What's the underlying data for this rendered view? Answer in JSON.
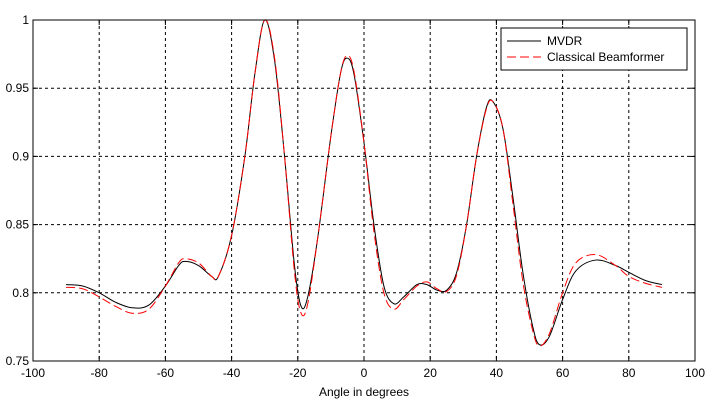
{
  "chart_data": {
    "type": "line",
    "xlabel": "Angle in degrees",
    "ylabel": "",
    "xlim": [
      -100,
      100
    ],
    "ylim": [
      0.75,
      1.0
    ],
    "xticks": [
      -100,
      -80,
      -60,
      -40,
      -20,
      0,
      20,
      40,
      60,
      80,
      100
    ],
    "yticks": [
      0.75,
      0.8,
      0.85,
      0.9,
      0.95,
      1.0
    ],
    "xtick_labels": [
      "-100",
      "-80",
      "-60",
      "-40",
      "-20",
      "0",
      "20",
      "40",
      "60",
      "80",
      "100"
    ],
    "ytick_labels": [
      "0.75",
      "0.8",
      "0.85",
      "0.9",
      "0.95",
      "1"
    ],
    "grid": true,
    "legend_position": "top-right",
    "series": [
      {
        "name": "MVDR",
        "color": "#000000",
        "dash": "solid",
        "points": [
          [
            -90,
            0.806
          ],
          [
            -85,
            0.805
          ],
          [
            -80,
            0.8
          ],
          [
            -75,
            0.793
          ],
          [
            -70,
            0.789
          ],
          [
            -65,
            0.791
          ],
          [
            -60,
            0.805
          ],
          [
            -56,
            0.82
          ],
          [
            -54,
            0.823
          ],
          [
            -50,
            0.82
          ],
          [
            -46,
            0.812
          ],
          [
            -44,
            0.812
          ],
          [
            -40,
            0.842
          ],
          [
            -36,
            0.9
          ],
          [
            -33,
            0.96
          ],
          [
            -30,
            1.0
          ],
          [
            -27,
            0.97
          ],
          [
            -24,
            0.9
          ],
          [
            -21,
            0.82
          ],
          [
            -19,
            0.79
          ],
          [
            -17,
            0.797
          ],
          [
            -14,
            0.84
          ],
          [
            -10,
            0.915
          ],
          [
            -7,
            0.962
          ],
          [
            -5,
            0.972
          ],
          [
            -3,
            0.96
          ],
          [
            0,
            0.91
          ],
          [
            3,
            0.85
          ],
          [
            6,
            0.805
          ],
          [
            9,
            0.792
          ],
          [
            12,
            0.797
          ],
          [
            16,
            0.806
          ],
          [
            19,
            0.806
          ],
          [
            22,
            0.802
          ],
          [
            25,
            0.802
          ],
          [
            28,
            0.815
          ],
          [
            31,
            0.85
          ],
          [
            34,
            0.9
          ],
          [
            37,
            0.936
          ],
          [
            39,
            0.94
          ],
          [
            42,
            0.92
          ],
          [
            45,
            0.87
          ],
          [
            48,
            0.815
          ],
          [
            51,
            0.775
          ],
          [
            53,
            0.762
          ],
          [
            56,
            0.768
          ],
          [
            60,
            0.795
          ],
          [
            64,
            0.816
          ],
          [
            70,
            0.824
          ],
          [
            76,
            0.82
          ],
          [
            80,
            0.815
          ],
          [
            85,
            0.809
          ],
          [
            90,
            0.806
          ]
        ]
      },
      {
        "name": "Classical Beamformer",
        "color": "#ff0000",
        "dash": "dashed",
        "points": [
          [
            -90,
            0.804
          ],
          [
            -85,
            0.803
          ],
          [
            -80,
            0.797
          ],
          [
            -75,
            0.79
          ],
          [
            -70,
            0.785
          ],
          [
            -65,
            0.788
          ],
          [
            -60,
            0.805
          ],
          [
            -56,
            0.822
          ],
          [
            -54,
            0.825
          ],
          [
            -50,
            0.822
          ],
          [
            -46,
            0.812
          ],
          [
            -44,
            0.812
          ],
          [
            -40,
            0.842
          ],
          [
            -36,
            0.9
          ],
          [
            -33,
            0.96
          ],
          [
            -30,
            1.0
          ],
          [
            -27,
            0.972
          ],
          [
            -24,
            0.9
          ],
          [
            -21,
            0.815
          ],
          [
            -19,
            0.785
          ],
          [
            -17,
            0.792
          ],
          [
            -14,
            0.84
          ],
          [
            -10,
            0.915
          ],
          [
            -7,
            0.962
          ],
          [
            -5,
            0.974
          ],
          [
            -3,
            0.962
          ],
          [
            0,
            0.91
          ],
          [
            3,
            0.845
          ],
          [
            6,
            0.8
          ],
          [
            9,
            0.788
          ],
          [
            12,
            0.795
          ],
          [
            16,
            0.805
          ],
          [
            19,
            0.808
          ],
          [
            22,
            0.803
          ],
          [
            25,
            0.801
          ],
          [
            28,
            0.813
          ],
          [
            31,
            0.85
          ],
          [
            34,
            0.9
          ],
          [
            37,
            0.935
          ],
          [
            39,
            0.94
          ],
          [
            42,
            0.92
          ],
          [
            45,
            0.865
          ],
          [
            48,
            0.808
          ],
          [
            51,
            0.772
          ],
          [
            53,
            0.761
          ],
          [
            56,
            0.77
          ],
          [
            60,
            0.8
          ],
          [
            64,
            0.822
          ],
          [
            70,
            0.828
          ],
          [
            76,
            0.82
          ],
          [
            80,
            0.812
          ],
          [
            85,
            0.807
          ],
          [
            90,
            0.804
          ]
        ]
      }
    ]
  }
}
